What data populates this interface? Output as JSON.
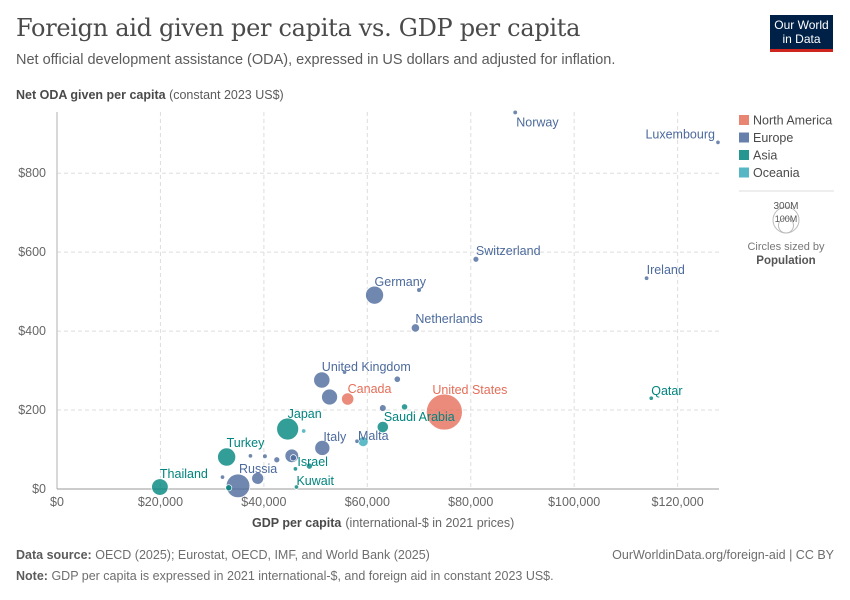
{
  "header": {
    "title": "Foreign aid given per capita vs. GDP per capita",
    "subtitle": "Net official development assistance (ODA), expressed in US dollars and adjusted for inflation.",
    "logo_line1": "Our World",
    "logo_line2": "in Data"
  },
  "footer": {
    "source_label": "Data source:",
    "source": "OECD (2025); Eurostat, OECD, IMF, and World Bank (2025)",
    "note_label": "Note:",
    "note": "GDP per capita is expressed in 2021 international-$, and foreign aid in constant 2023 US$.",
    "url_license": "OurWorldinData.org/foreign-aid | CC BY"
  },
  "chart_data": {
    "type": "scatter",
    "title": "Foreign aid given per capita vs. GDP per capita",
    "ylabel_bold": "Net ODA given per capita",
    "ylabel_rest": "(constant 2023 US$)",
    "xlabel_bold": "GDP per capita",
    "xlabel_rest": "(international-$ in 2021 prices)",
    "xlim": [
      0,
      128000
    ],
    "ylim": [
      0,
      955
    ],
    "x_ticks": [
      {
        "v": 0,
        "label": "$0"
      },
      {
        "v": 20000,
        "label": "$20,000"
      },
      {
        "v": 40000,
        "label": "$40,000"
      },
      {
        "v": 60000,
        "label": "$60,000"
      },
      {
        "v": 80000,
        "label": "$80,000"
      },
      {
        "v": 100000,
        "label": "$100,000"
      },
      {
        "v": 120000,
        "label": "$120,000"
      }
    ],
    "y_ticks": [
      {
        "v": 0,
        "label": "$0"
      },
      {
        "v": 200,
        "label": "$200"
      },
      {
        "v": 400,
        "label": "$400"
      },
      {
        "v": 600,
        "label": "$600"
      },
      {
        "v": 800,
        "label": "$800"
      }
    ],
    "grid": true,
    "legend_placement": "right",
    "legend": [
      {
        "name": "North America",
        "color": "#e56e5a"
      },
      {
        "name": "Europe",
        "color": "#4c6a9c"
      },
      {
        "name": "Asia",
        "color": "#00847e"
      },
      {
        "name": "Oceania",
        "color": "#38aaba"
      }
    ],
    "size_legend": {
      "big": "300M",
      "small": "100M",
      "caption": "Circles sized by",
      "variable": "Population"
    },
    "points": [
      {
        "label": "Norway",
        "x": 88600,
        "y": 954,
        "pop": 5.5,
        "region": "Europe"
      },
      {
        "label": "Luxembourg",
        "x": 127800,
        "y": 878,
        "pop": 0.66,
        "region": "Europe"
      },
      {
        "label": "Switzerland",
        "x": 81000,
        "y": 582,
        "pop": 8.8,
        "region": "Europe"
      },
      {
        "label": "Ireland",
        "x": 114000,
        "y": 534,
        "pop": 5.2,
        "region": "Europe"
      },
      {
        "label": "Germany",
        "x": 61400,
        "y": 491,
        "pop": 84,
        "region": "Europe"
      },
      {
        "label": "",
        "x": 70000,
        "y": 504,
        "pop": 5.9,
        "region": "Europe"
      },
      {
        "label": "Netherlands",
        "x": 69300,
        "y": 408,
        "pop": 17.8,
        "region": "Europe"
      },
      {
        "label": "United Kingdom",
        "x": 51200,
        "y": 276,
        "pop": 68,
        "region": "Europe"
      },
      {
        "label": "",
        "x": 55600,
        "y": 296,
        "pop": 0.38,
        "region": "Europe"
      },
      {
        "label": "",
        "x": 65800,
        "y": 278,
        "pop": 10.5,
        "region": "Europe"
      },
      {
        "label": "",
        "x": 52700,
        "y": 233,
        "pop": 66,
        "region": "Europe"
      },
      {
        "label": "Canada",
        "x": 56200,
        "y": 228,
        "pop": 39,
        "region": "North America"
      },
      {
        "label": "United States",
        "x": 74900,
        "y": 195,
        "pop": 335,
        "region": "North America"
      },
      {
        "label": "",
        "x": 63000,
        "y": 205,
        "pop": 11.8,
        "region": "Europe"
      },
      {
        "label": "",
        "x": 67200,
        "y": 208,
        "pop": 10,
        "region": "Asia"
      },
      {
        "label": "Saudi Arabia",
        "x": 63000,
        "y": 157,
        "pop": 33,
        "region": "Asia"
      },
      {
        "label": "Qatar",
        "x": 114900,
        "y": 230,
        "pop": 2.7,
        "region": "Asia"
      },
      {
        "label": "Malta",
        "x": 58000,
        "y": 121,
        "pop": 0.5,
        "region": "Europe"
      },
      {
        "label": "",
        "x": 59200,
        "y": 120,
        "pop": 26,
        "region": "Oceania"
      },
      {
        "label": "Japan",
        "x": 44600,
        "y": 152,
        "pop": 124,
        "region": "Asia"
      },
      {
        "label": "",
        "x": 47700,
        "y": 147,
        "pop": 5.1,
        "region": "Oceania"
      },
      {
        "label": "Italy",
        "x": 51300,
        "y": 104,
        "pop": 59,
        "region": "Europe"
      },
      {
        "label": "",
        "x": 45400,
        "y": 84,
        "pop": 48,
        "region": "Europe"
      },
      {
        "label": "",
        "x": 42500,
        "y": 74,
        "pop": 9.1,
        "region": "Europe"
      },
      {
        "label": "",
        "x": 40200,
        "y": 83,
        "pop": 5.6,
        "region": "Europe"
      },
      {
        "label": "",
        "x": 37400,
        "y": 84,
        "pop": 2.1,
        "region": "Europe"
      },
      {
        "label": "Israel",
        "x": 48800,
        "y": 58,
        "pop": 9.7,
        "region": "Asia"
      },
      {
        "label": "",
        "x": 46100,
        "y": 51,
        "pop": 1.5,
        "region": "Asia"
      },
      {
        "label": "",
        "x": 45700,
        "y": 79,
        "pop": 10.4,
        "region": "Europe"
      },
      {
        "label": "Turkey",
        "x": 32800,
        "y": 81,
        "pop": 85,
        "region": "Asia"
      },
      {
        "label": "",
        "x": 32000,
        "y": 30,
        "pop": 2.8,
        "region": "Europe"
      },
      {
        "label": "",
        "x": 38800,
        "y": 27,
        "pop": 37,
        "region": "Europe"
      },
      {
        "label": "Russia",
        "x": 35000,
        "y": 8,
        "pop": 144,
        "region": "Europe"
      },
      {
        "label": "",
        "x": 33200,
        "y": 3,
        "pop": 10.1,
        "region": "Asia"
      },
      {
        "label": "Kuwait",
        "x": 46300,
        "y": 5,
        "pop": 4.3,
        "region": "Asia"
      },
      {
        "label": "Thailand",
        "x": 19900,
        "y": 5,
        "pop": 71,
        "region": "Asia"
      }
    ]
  }
}
